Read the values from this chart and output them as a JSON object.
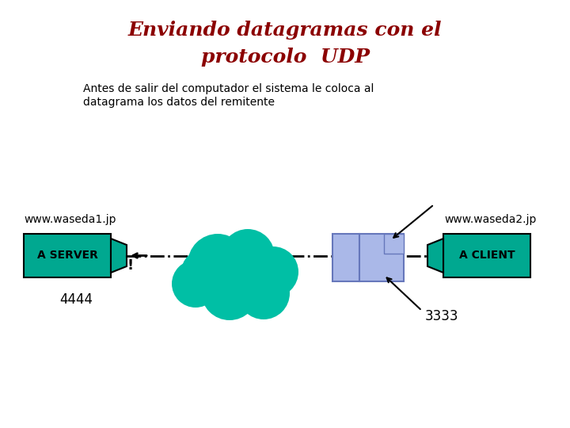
{
  "title_line1": "Enviando datagramas con el",
  "title_line2": "protocolo  UDP",
  "title_color": "#8B0000",
  "subtitle_line1": "Antes de salir del computador el sistema le coloca al",
  "subtitle_line2": "datagrama los datos del remitente",
  "subtitle_color": "#000000",
  "server_label": "A SERVER",
  "client_label": "A CLIENT",
  "server_url": "www.waseda1.jp",
  "client_url": "www.waseda2.jp",
  "port_left": "4444",
  "port_right": "3333",
  "teal_color": "#00A890",
  "cloud_color": "#00BFA5",
  "datagram_color": "#aab8e8",
  "datagram_border": "#6677bb"
}
